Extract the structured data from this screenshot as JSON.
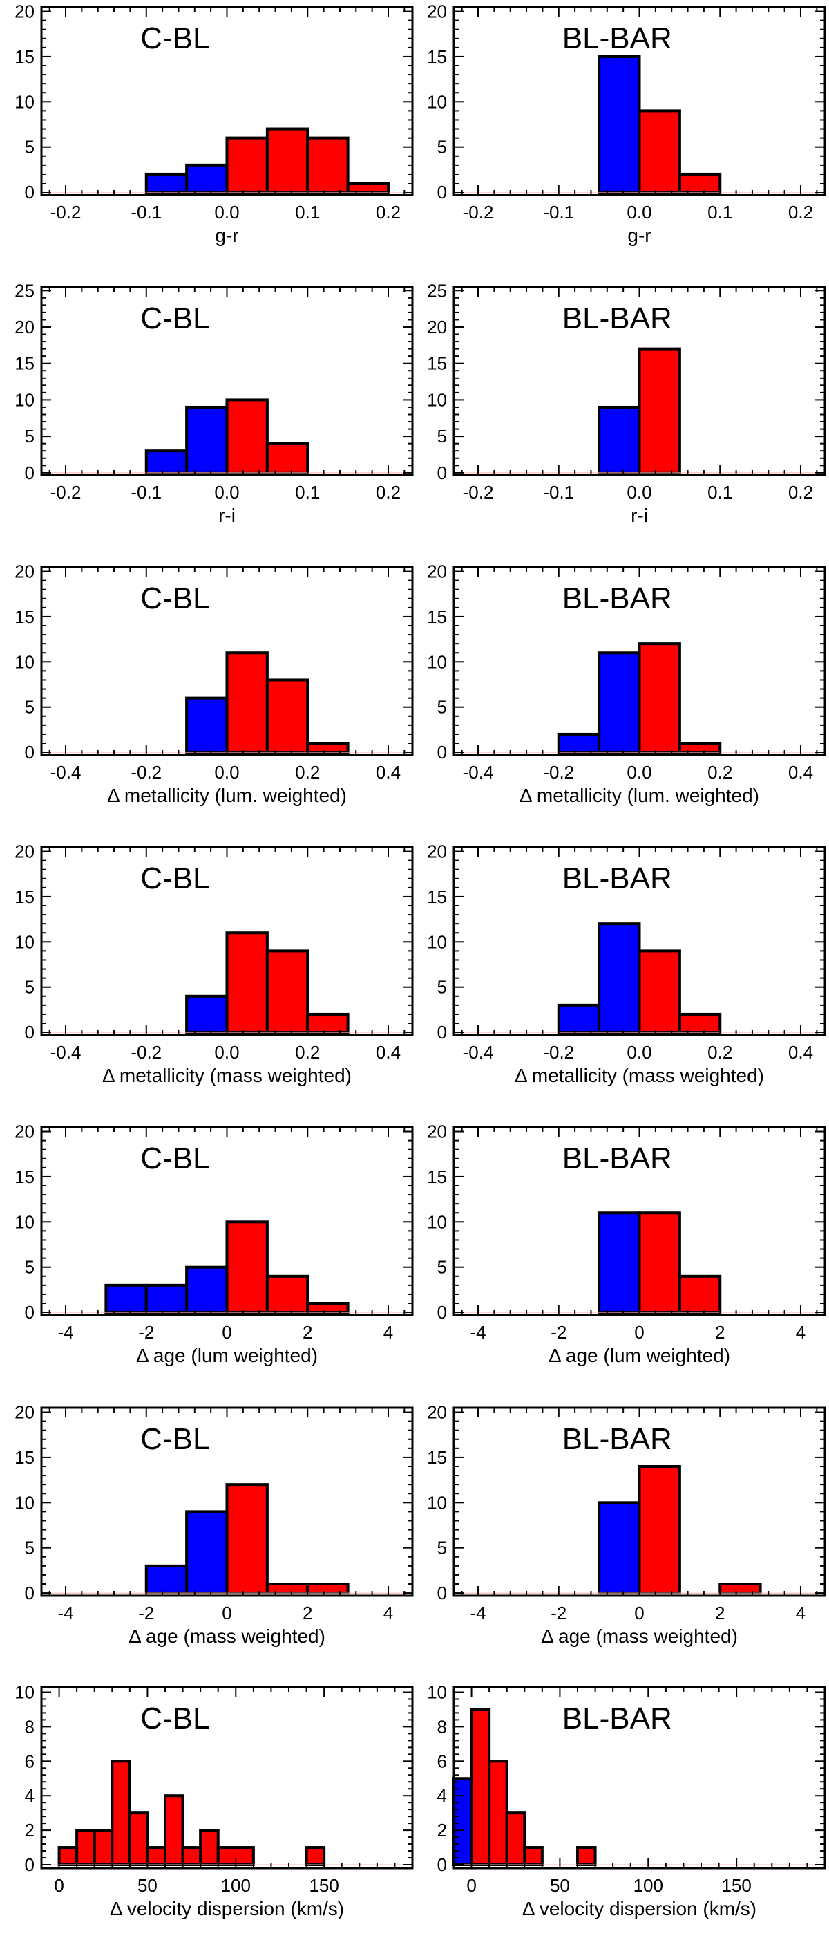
{
  "colors": {
    "negative": "#0000ff",
    "positive": "#ff0000",
    "outline": "#000000"
  },
  "chart_data": [
    {
      "type": "bar",
      "title": "C-BL",
      "xlabel": "g-r",
      "ylabel": "",
      "xlim": [
        -0.23,
        0.23
      ],
      "ylim": [
        -0.3,
        20.5
      ],
      "xticks": [
        -0.2,
        -0.1,
        0.0,
        0.1,
        0.2
      ],
      "xticklabels": [
        "-0.2",
        "-0.1",
        "0.0",
        "0.1",
        "0.2"
      ],
      "yticks": [
        0,
        5,
        10,
        15,
        20
      ],
      "yticklabels": [
        "0",
        "5",
        "10",
        "15",
        "20"
      ],
      "bins": [
        [
          -0.1,
          -0.05,
          2
        ],
        [
          -0.05,
          0.0,
          3
        ],
        [
          0.0,
          0.05,
          6
        ],
        [
          0.05,
          0.1,
          7
        ],
        [
          0.1,
          0.15,
          6
        ],
        [
          0.15,
          0.2,
          1
        ]
      ]
    },
    {
      "type": "bar",
      "title": "BL-BAR",
      "xlabel": "g-r",
      "ylabel": "",
      "xlim": [
        -0.23,
        0.23
      ],
      "ylim": [
        -0.3,
        20.5
      ],
      "xticks": [
        -0.2,
        -0.1,
        0.0,
        0.1,
        0.2
      ],
      "xticklabels": [
        "-0.2",
        "-0.1",
        "0.0",
        "0.1",
        "0.2"
      ],
      "yticks": [
        0,
        5,
        10,
        15,
        20
      ],
      "yticklabels": [
        "0",
        "5",
        "10",
        "15",
        "20"
      ],
      "bins": [
        [
          -0.05,
          0.0,
          15
        ],
        [
          0.0,
          0.05,
          9
        ],
        [
          0.05,
          0.1,
          2
        ]
      ]
    },
    {
      "type": "bar",
      "title": "C-BL",
      "xlabel": "r-i",
      "ylabel": "",
      "xlim": [
        -0.23,
        0.23
      ],
      "ylim": [
        -0.3,
        25.5
      ],
      "xticks": [
        -0.2,
        -0.1,
        0.0,
        0.1,
        0.2
      ],
      "xticklabels": [
        "-0.2",
        "-0.1",
        "0.0",
        "0.1",
        "0.2"
      ],
      "yticks": [
        0,
        5,
        10,
        15,
        20,
        25
      ],
      "yticklabels": [
        "0",
        "5",
        "10",
        "15",
        "20",
        "25"
      ],
      "bins": [
        [
          -0.1,
          -0.05,
          3
        ],
        [
          -0.05,
          0.0,
          9
        ],
        [
          0.0,
          0.05,
          10
        ],
        [
          0.05,
          0.1,
          4
        ]
      ]
    },
    {
      "type": "bar",
      "title": "BL-BAR",
      "xlabel": "r-i",
      "ylabel": "",
      "xlim": [
        -0.23,
        0.23
      ],
      "ylim": [
        -0.3,
        25.5
      ],
      "xticks": [
        -0.2,
        -0.1,
        0.0,
        0.1,
        0.2
      ],
      "xticklabels": [
        "-0.2",
        "-0.1",
        "0.0",
        "0.1",
        "0.2"
      ],
      "yticks": [
        0,
        5,
        10,
        15,
        20,
        25
      ],
      "yticklabels": [
        "0",
        "5",
        "10",
        "15",
        "20",
        "25"
      ],
      "bins": [
        [
          -0.05,
          0.0,
          9
        ],
        [
          0.0,
          0.05,
          17
        ]
      ]
    },
    {
      "type": "bar",
      "title": "C-BL",
      "xlabel": "Δ metallicity (lum. weighted)",
      "ylabel": "",
      "xlim": [
        -0.46,
        0.46
      ],
      "ylim": [
        -0.3,
        20.5
      ],
      "xticks": [
        -0.4,
        -0.2,
        0.0,
        0.2,
        0.4
      ],
      "xticklabels": [
        "-0.4",
        "-0.2",
        "0.0",
        "0.2",
        "0.4"
      ],
      "yticks": [
        0,
        5,
        10,
        15,
        20
      ],
      "yticklabels": [
        "0",
        "5",
        "10",
        "15",
        "20"
      ],
      "bins": [
        [
          -0.1,
          0.0,
          6
        ],
        [
          0.0,
          0.1,
          11
        ],
        [
          0.1,
          0.2,
          8
        ],
        [
          0.2,
          0.3,
          1
        ]
      ]
    },
    {
      "type": "bar",
      "title": "BL-BAR",
      "xlabel": "Δ metallicity (lum. weighted)",
      "ylabel": "",
      "xlim": [
        -0.46,
        0.46
      ],
      "ylim": [
        -0.3,
        20.5
      ],
      "xticks": [
        -0.4,
        -0.2,
        0.0,
        0.2,
        0.4
      ],
      "xticklabels": [
        "-0.4",
        "-0.2",
        "0.0",
        "0.2",
        "0.4"
      ],
      "yticks": [
        0,
        5,
        10,
        15,
        20
      ],
      "yticklabels": [
        "0",
        "5",
        "10",
        "15",
        "20"
      ],
      "bins": [
        [
          -0.2,
          -0.1,
          2
        ],
        [
          -0.1,
          0.0,
          11
        ],
        [
          0.0,
          0.1,
          12
        ],
        [
          0.1,
          0.2,
          1
        ]
      ]
    },
    {
      "type": "bar",
      "title": "C-BL",
      "xlabel": "Δ metallicity (mass weighted)",
      "ylabel": "",
      "xlim": [
        -0.46,
        0.46
      ],
      "ylim": [
        -0.3,
        20.5
      ],
      "xticks": [
        -0.4,
        -0.2,
        0.0,
        0.2,
        0.4
      ],
      "xticklabels": [
        "-0.4",
        "-0.2",
        "0.0",
        "0.2",
        "0.4"
      ],
      "yticks": [
        0,
        5,
        10,
        15,
        20
      ],
      "yticklabels": [
        "0",
        "5",
        "10",
        "15",
        "20"
      ],
      "bins": [
        [
          -0.1,
          0.0,
          4
        ],
        [
          0.0,
          0.1,
          11
        ],
        [
          0.1,
          0.2,
          9
        ],
        [
          0.2,
          0.3,
          2
        ]
      ]
    },
    {
      "type": "bar",
      "title": "BL-BAR",
      "xlabel": "Δ metallicity (mass weighted)",
      "ylabel": "",
      "xlim": [
        -0.46,
        0.46
      ],
      "ylim": [
        -0.3,
        20.5
      ],
      "xticks": [
        -0.4,
        -0.2,
        0.0,
        0.2,
        0.4
      ],
      "xticklabels": [
        "-0.4",
        "-0.2",
        "0.0",
        "0.2",
        "0.4"
      ],
      "yticks": [
        0,
        5,
        10,
        15,
        20
      ],
      "yticklabels": [
        "0",
        "5",
        "10",
        "15",
        "20"
      ],
      "bins": [
        [
          -0.2,
          -0.1,
          3
        ],
        [
          -0.1,
          0.0,
          12
        ],
        [
          0.0,
          0.1,
          9
        ],
        [
          0.1,
          0.2,
          2
        ]
      ]
    },
    {
      "type": "bar",
      "title": "C-BL",
      "xlabel": "Δ age (lum weighted)",
      "ylabel": "",
      "xlim": [
        -4.6,
        4.6
      ],
      "ylim": [
        -0.3,
        20.5
      ],
      "xticks": [
        -4,
        -2,
        0,
        2,
        4
      ],
      "xticklabels": [
        "-4",
        "-2",
        "0",
        "2",
        "4"
      ],
      "yticks": [
        0,
        5,
        10,
        15,
        20
      ],
      "yticklabels": [
        "0",
        "5",
        "10",
        "15",
        "20"
      ],
      "bins": [
        [
          -3,
          -2,
          3
        ],
        [
          -2,
          -1,
          3
        ],
        [
          -1,
          0,
          5
        ],
        [
          0,
          1,
          10
        ],
        [
          1,
          2,
          4
        ],
        [
          2,
          3,
          1
        ]
      ]
    },
    {
      "type": "bar",
      "title": "BL-BAR",
      "xlabel": "Δ age (lum weighted)",
      "ylabel": "",
      "xlim": [
        -4.6,
        4.6
      ],
      "ylim": [
        -0.3,
        20.5
      ],
      "xticks": [
        -4,
        -2,
        0,
        2,
        4
      ],
      "xticklabels": [
        "-4",
        "-2",
        "0",
        "2",
        "4"
      ],
      "yticks": [
        0,
        5,
        10,
        15,
        20
      ],
      "yticklabels": [
        "0",
        "5",
        "10",
        "15",
        "20"
      ],
      "bins": [
        [
          -1,
          0,
          11
        ],
        [
          0,
          1,
          11
        ],
        [
          1,
          2,
          4
        ]
      ]
    },
    {
      "type": "bar",
      "title": "C-BL",
      "xlabel": "Δ age (mass weighted)",
      "ylabel": "",
      "xlim": [
        -4.6,
        4.6
      ],
      "ylim": [
        -0.3,
        20.5
      ],
      "xticks": [
        -4,
        -2,
        0,
        2,
        4
      ],
      "xticklabels": [
        "-4",
        "-2",
        "0",
        "2",
        "4"
      ],
      "yticks": [
        0,
        5,
        10,
        15,
        20
      ],
      "yticklabels": [
        "0",
        "5",
        "10",
        "15",
        "20"
      ],
      "bins": [
        [
          -2,
          -1,
          3
        ],
        [
          -1,
          0,
          9
        ],
        [
          0,
          1,
          12
        ],
        [
          1,
          2,
          1
        ],
        [
          2,
          3,
          1
        ]
      ]
    },
    {
      "type": "bar",
      "title": "BL-BAR",
      "xlabel": "Δ age (mass weighted)",
      "ylabel": "",
      "xlim": [
        -4.6,
        4.6
      ],
      "ylim": [
        -0.3,
        20.5
      ],
      "xticks": [
        -4,
        -2,
        0,
        2,
        4
      ],
      "xticklabels": [
        "-4",
        "-2",
        "0",
        "2",
        "4"
      ],
      "yticks": [
        0,
        5,
        10,
        15,
        20
      ],
      "yticklabels": [
        "0",
        "5",
        "10",
        "15",
        "20"
      ],
      "bins": [
        [
          -1,
          0,
          10
        ],
        [
          0,
          1,
          14
        ],
        [
          2,
          3,
          1
        ]
      ]
    },
    {
      "type": "bar",
      "title": "C-BL",
      "xlabel": "Δ velocity dispersion (km/s)",
      "ylabel": "",
      "xlim": [
        -10,
        200
      ],
      "ylim": [
        -0.2,
        10.3
      ],
      "xticks": [
        0,
        50,
        100,
        150
      ],
      "xticklabels": [
        "0",
        "50",
        "100",
        "150"
      ],
      "yticks": [
        0,
        2,
        4,
        6,
        8,
        10
      ],
      "yticklabels": [
        "0",
        "2",
        "4",
        "6",
        "8",
        "10"
      ],
      "bins": [
        [
          0,
          10,
          1
        ],
        [
          10,
          20,
          2
        ],
        [
          20,
          30,
          2
        ],
        [
          30,
          40,
          6
        ],
        [
          40,
          50,
          3
        ],
        [
          50,
          60,
          1
        ],
        [
          60,
          70,
          4
        ],
        [
          70,
          80,
          1
        ],
        [
          80,
          90,
          2
        ],
        [
          90,
          110,
          1
        ],
        [
          140,
          150,
          1
        ]
      ]
    },
    {
      "type": "bar",
      "title": "BL-BAR",
      "xlabel": "Δ velocity dispersion (km/s)",
      "ylabel": "",
      "xlim": [
        -10,
        200
      ],
      "ylim": [
        -0.2,
        10.3
      ],
      "xticks": [
        0,
        50,
        100,
        150
      ],
      "xticklabels": [
        "0",
        "50",
        "100",
        "150"
      ],
      "yticks": [
        0,
        2,
        4,
        6,
        8,
        10
      ],
      "yticklabels": [
        "0",
        "2",
        "4",
        "6",
        "8",
        "10"
      ],
      "bins": [
        [
          -10,
          0,
          5
        ],
        [
          0,
          10,
          9
        ],
        [
          10,
          20,
          6
        ],
        [
          20,
          30,
          3
        ],
        [
          30,
          40,
          1
        ],
        [
          60,
          70,
          1
        ]
      ]
    }
  ]
}
